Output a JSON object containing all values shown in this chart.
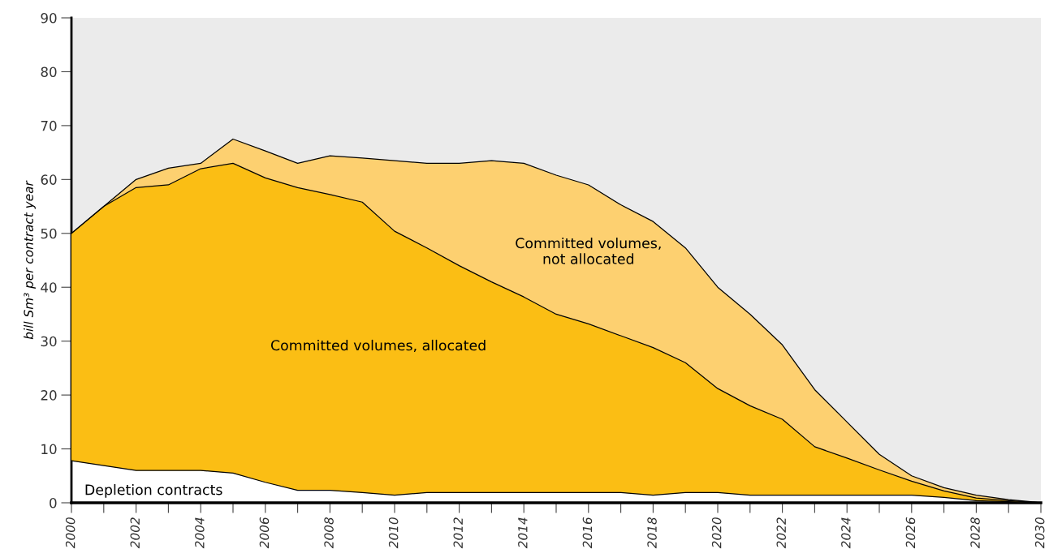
{
  "chart_data": {
    "type": "area",
    "stacked": true,
    "ylabel": "bill Sm³ per contract year",
    "x": [
      2000,
      2001,
      2002,
      2003,
      2004,
      2005,
      2006,
      2007,
      2008,
      2009,
      2010,
      2011,
      2012,
      2013,
      2014,
      2015,
      2016,
      2017,
      2018,
      2019,
      2020,
      2021,
      2022,
      2023,
      2024,
      2025,
      2026,
      2027,
      2028,
      2029,
      2030
    ],
    "series": [
      {
        "name": "Depletion contracts",
        "color": "#ffffff",
        "values": [
          7.8,
          6.9,
          6,
          6,
          6,
          5.5,
          3.8,
          2.3,
          2.3,
          1.9,
          1.4,
          1.9,
          1.9,
          1.9,
          1.9,
          1.9,
          1.9,
          1.9,
          1.4,
          1.9,
          1.9,
          1.4,
          1.4,
          1.4,
          1.4,
          1.4,
          1.4,
          1.0,
          0.4,
          0.2,
          0
        ]
      },
      {
        "name": "Committed volumes, allocated",
        "color": "#fbbe14",
        "values": [
          42.2,
          48.1,
          52.5,
          53,
          56,
          57.5,
          56.5,
          56.2,
          54.9,
          53.9,
          49,
          45.4,
          42.1,
          39.1,
          36.3,
          33.1,
          31.3,
          29.1,
          27.4,
          24.1,
          19.3,
          16.6,
          14.1,
          9,
          6.9,
          4.7,
          2.6,
          1.2,
          0.5,
          0.2,
          0
        ]
      },
      {
        "name": "Committed volumes,\nnot allocated",
        "color": "#fdd070",
        "values": [
          0,
          0,
          1.5,
          3.1,
          1,
          4.5,
          5,
          4.5,
          7.2,
          8.2,
          13.1,
          15.7,
          19,
          22.5,
          24.8,
          25.8,
          25.8,
          24.3,
          23.4,
          21.3,
          18.8,
          17,
          13.8,
          10.6,
          6.7,
          2.9,
          1,
          0.6,
          0.5,
          0.2,
          0
        ]
      }
    ],
    "xlim": [
      2000,
      2030
    ],
    "xticks": [
      2000,
      {
        "value": 2001,
        "label": null
      },
      2002,
      {
        "value": 2003,
        "label": null
      },
      2004,
      {
        "value": 2005,
        "label": null
      },
      2006,
      {
        "value": 2007,
        "label": null
      },
      2008,
      {
        "value": 2009,
        "label": null
      },
      2010,
      {
        "value": 2011,
        "label": null
      },
      2012,
      {
        "value": 2013,
        "label": null
      },
      2014,
      {
        "value": 2015,
        "label": null
      },
      2016,
      {
        "value": 2017,
        "label": null
      },
      2018,
      {
        "value": 2019,
        "label": null
      },
      2020,
      {
        "value": 2021,
        "label": null
      },
      2022,
      {
        "value": 2023,
        "label": null
      },
      2024,
      {
        "value": 2025,
        "label": null
      },
      2026,
      {
        "value": 2027,
        "label": null
      },
      2028,
      {
        "value": 2029,
        "label": null
      },
      2030
    ],
    "ylim": [
      0,
      90
    ],
    "yticks": [
      0,
      10,
      20,
      30,
      40,
      50,
      60,
      70,
      80,
      90
    ],
    "grid": false,
    "legend": false
  }
}
